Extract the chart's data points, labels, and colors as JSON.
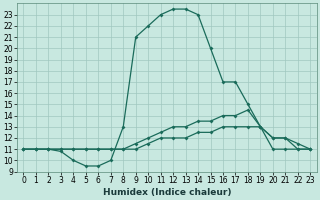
{
  "xlabel": "Humidex (Indice chaleur)",
  "background_color": "#c8e8e0",
  "grid_color": "#a0c8c0",
  "line_color": "#1a6b5a",
  "xlim": [
    -0.5,
    23.5
  ],
  "ylim": [
    9,
    24
  ],
  "yticks": [
    9,
    10,
    11,
    12,
    13,
    14,
    15,
    16,
    17,
    18,
    19,
    20,
    21,
    22,
    23
  ],
  "xticks": [
    0,
    1,
    2,
    3,
    4,
    5,
    6,
    7,
    8,
    9,
    10,
    11,
    12,
    13,
    14,
    15,
    16,
    17,
    18,
    19,
    20,
    21,
    22,
    23
  ],
  "line1_x": [
    0,
    1,
    2,
    3,
    4,
    5,
    6,
    7,
    8,
    9,
    10,
    11,
    12,
    13,
    14,
    15,
    16,
    17,
    18,
    19,
    20,
    21,
    22,
    23
  ],
  "line1_y": [
    11,
    11,
    11,
    10.8,
    10,
    9.5,
    9.5,
    10,
    13,
    21,
    22,
    23,
    23.5,
    23.5,
    23,
    20,
    17,
    17,
    15,
    13,
    12,
    12,
    11,
    11
  ],
  "line2_x": [
    0,
    1,
    2,
    3,
    4,
    5,
    6,
    7,
    8,
    9,
    10,
    11,
    12,
    13,
    14,
    15,
    16,
    17,
    18,
    19,
    20,
    21,
    22,
    23
  ],
  "line2_y": [
    11,
    11,
    11,
    11,
    11,
    11,
    11,
    11,
    11,
    11.5,
    12,
    12.5,
    13,
    13,
    13.5,
    13.5,
    14,
    14,
    14.5,
    13,
    12,
    12,
    11.5,
    11
  ],
  "line3_x": [
    0,
    1,
    2,
    3,
    4,
    5,
    6,
    7,
    8,
    9,
    10,
    11,
    12,
    13,
    14,
    15,
    16,
    17,
    18,
    19,
    20,
    21,
    22,
    23
  ],
  "line3_y": [
    11,
    11,
    11,
    11,
    11,
    11,
    11,
    11,
    11,
    11,
    11.5,
    12,
    12,
    12,
    12.5,
    12.5,
    13,
    13,
    13,
    13,
    11,
    11,
    11,
    11
  ],
  "tick_fontsize": 5.5,
  "xlabel_fontsize": 6.5,
  "marker_size": 2.0,
  "linewidth": 0.9
}
